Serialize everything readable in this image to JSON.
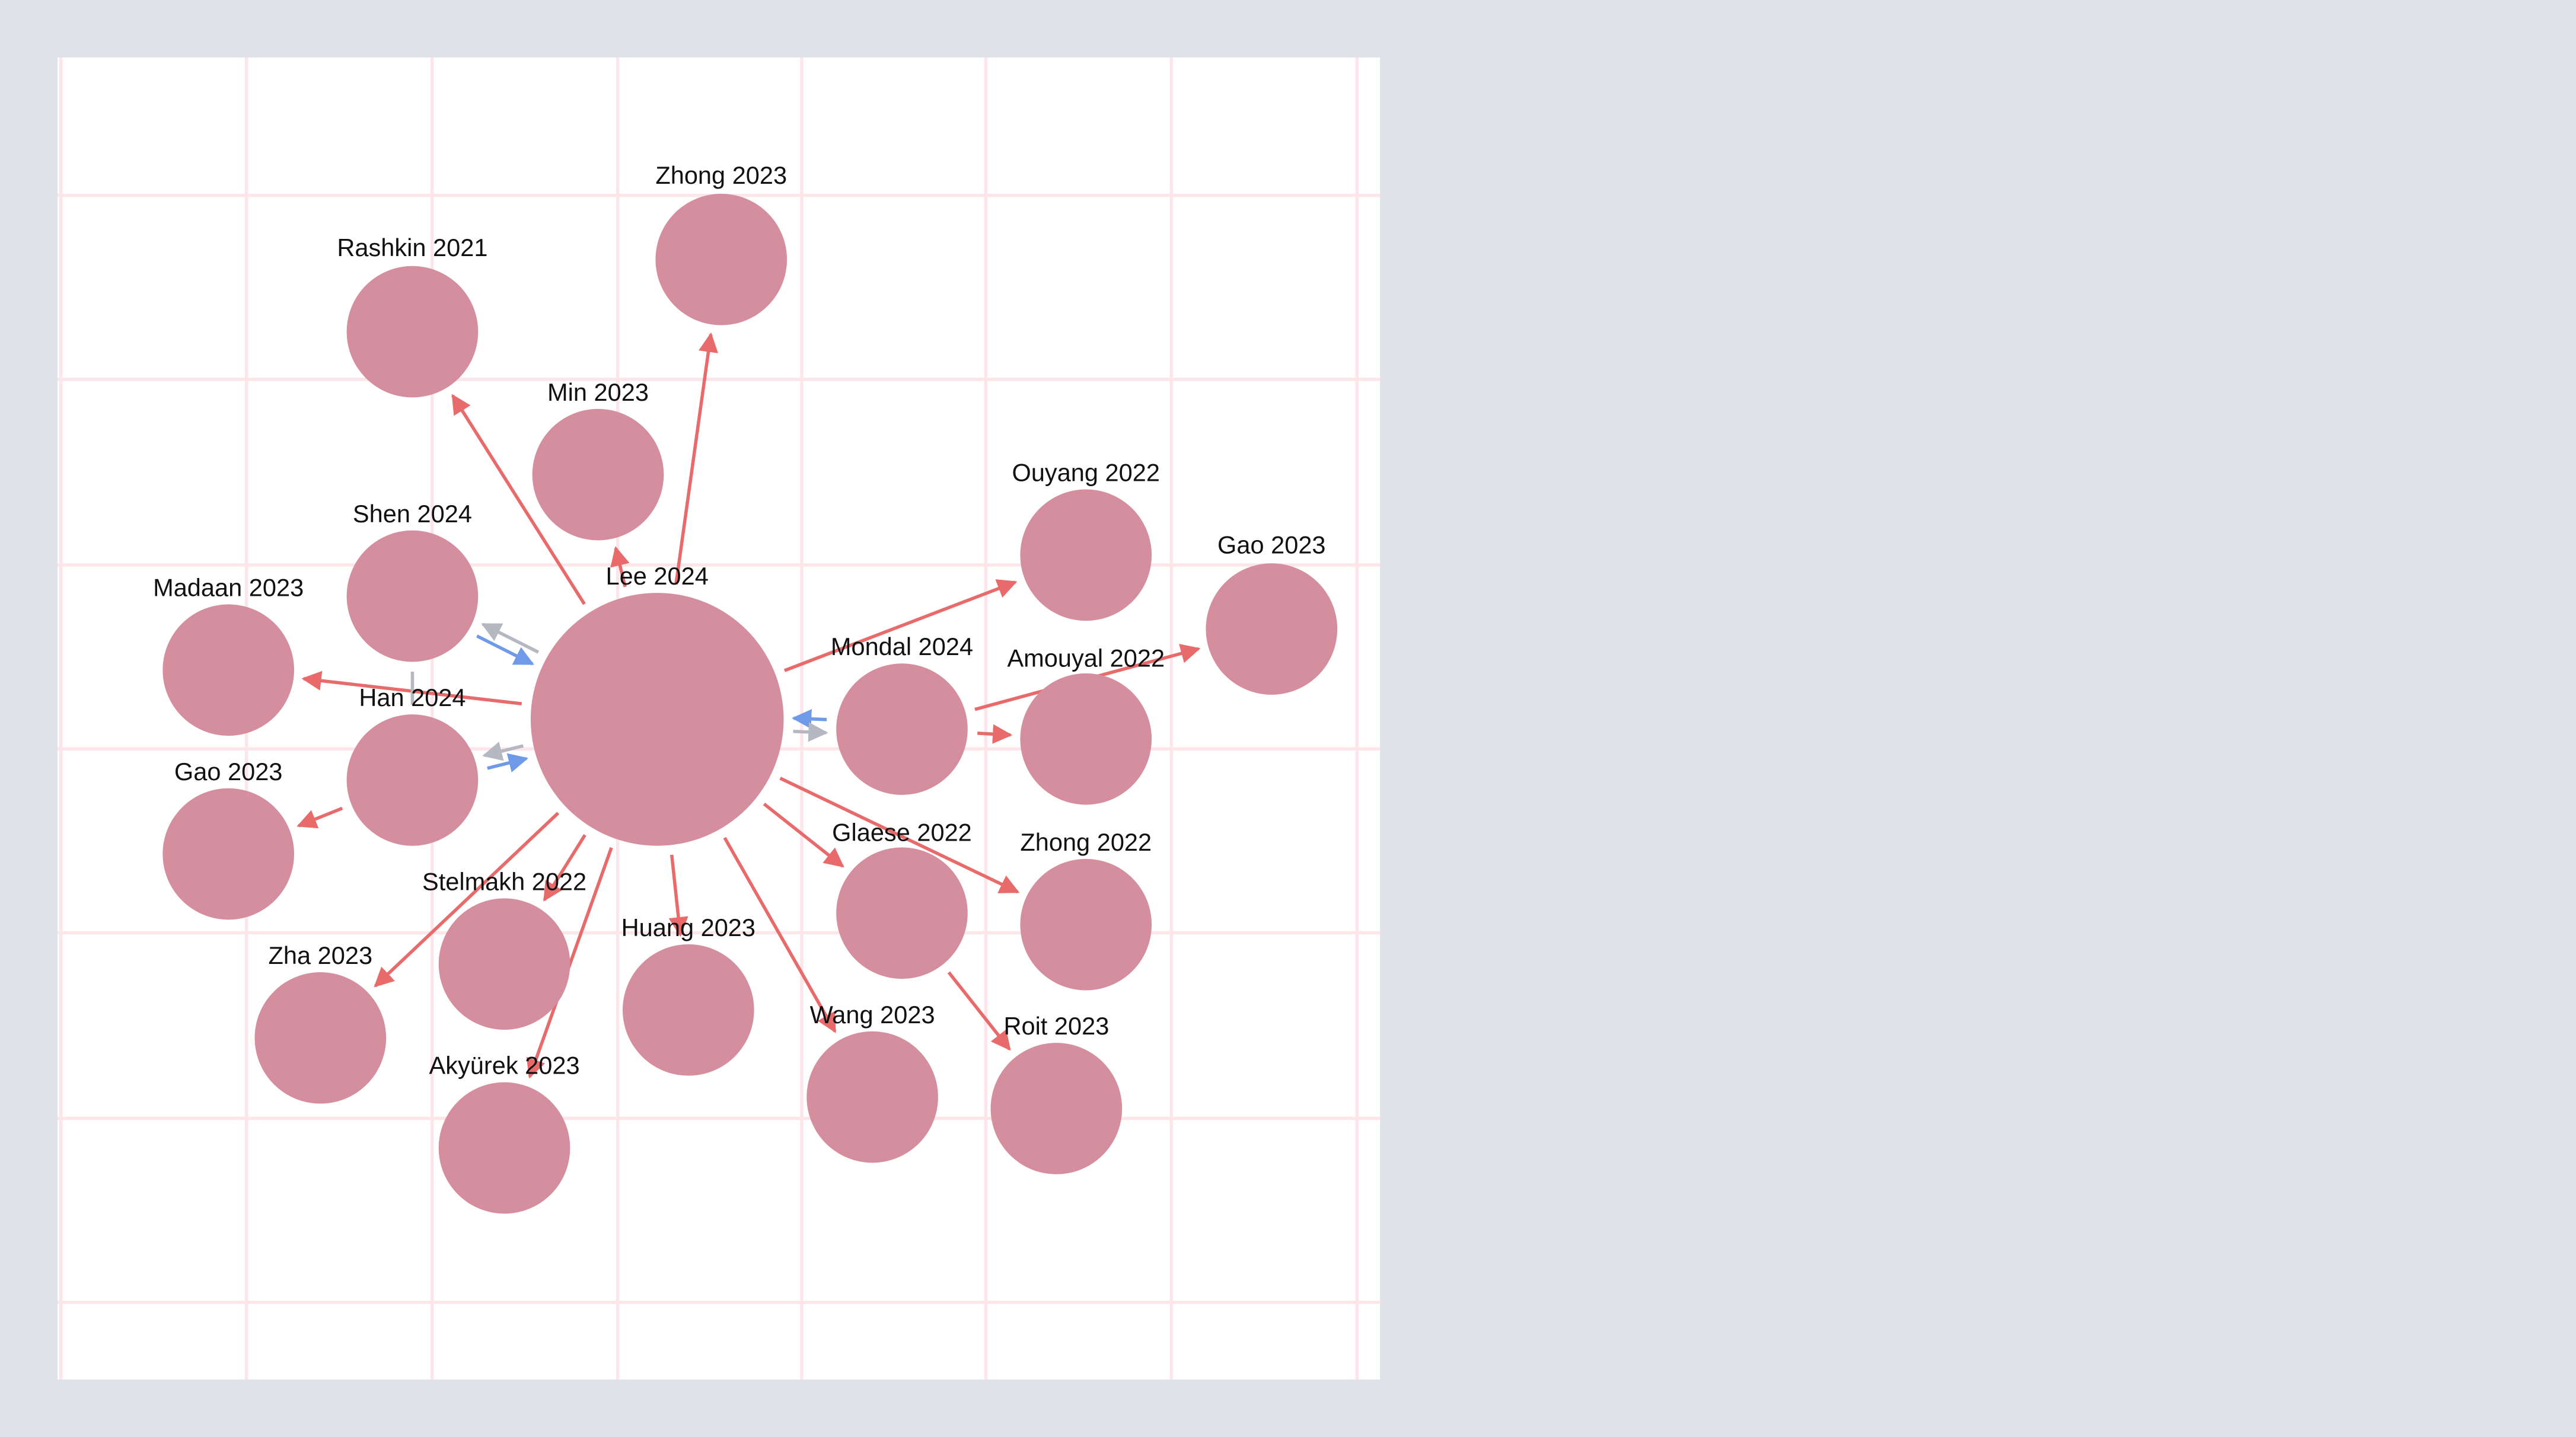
{
  "nodes": [
    {
      "label": "Lee 2024"
    },
    {
      "label": "Zhong 2023"
    },
    {
      "label": "Rashkin 2021"
    },
    {
      "label": "Min 2023"
    },
    {
      "label": "Shen 2024"
    },
    {
      "label": "Madaan 2023"
    },
    {
      "label": "Han 2024"
    },
    {
      "label": "Gao 2023"
    },
    {
      "label": "Ouyang 2022"
    },
    {
      "label": "Gao 2023"
    },
    {
      "label": "Mondal 2024"
    },
    {
      "label": "Amouyal 2022"
    },
    {
      "label": "Zhong 2022"
    },
    {
      "label": "Glaese 2022"
    },
    {
      "label": "Stelmakh 2022"
    },
    {
      "label": "Huang 2023"
    },
    {
      "label": "Zha 2023"
    },
    {
      "label": "Akyürek 2023"
    },
    {
      "label": "Wang 2023"
    },
    {
      "label": "Roit 2023"
    }
  ]
}
